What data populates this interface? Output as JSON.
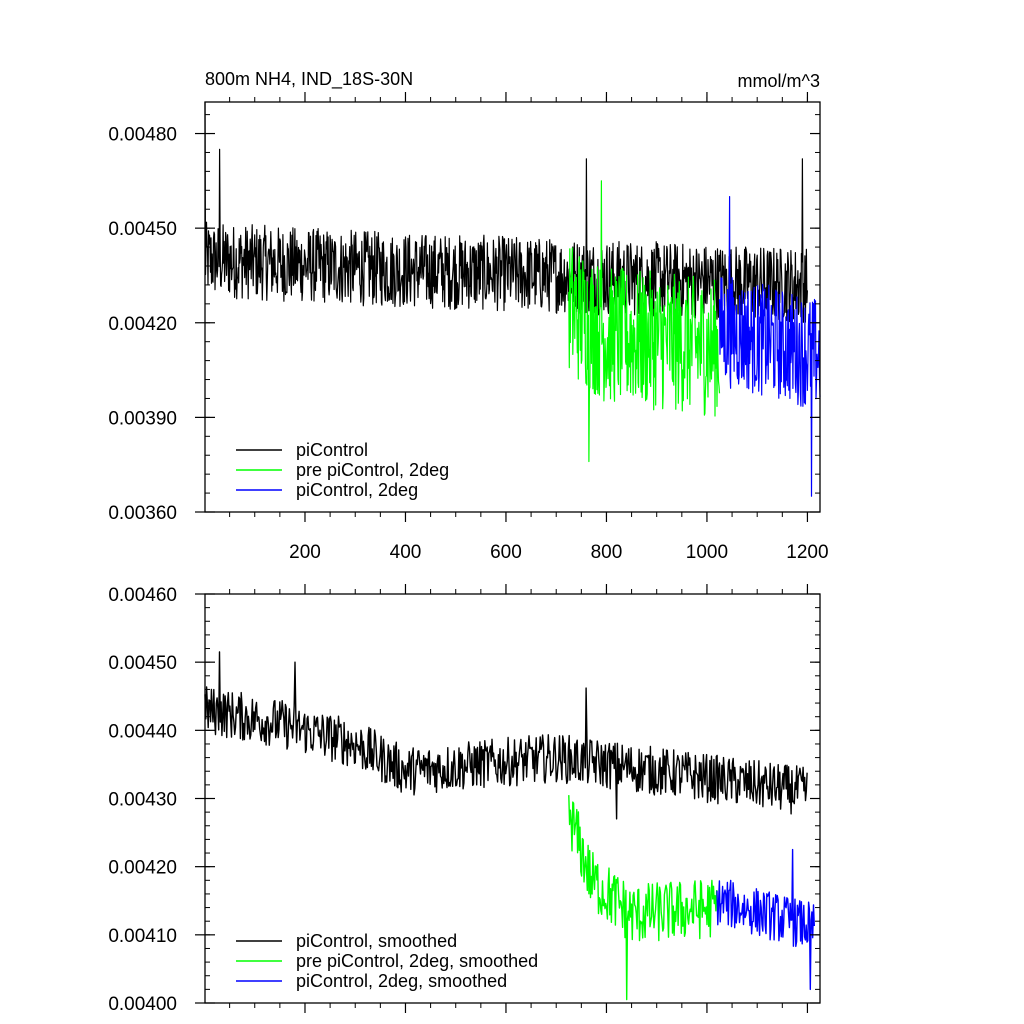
{
  "chart_data": [
    {
      "type": "line",
      "title_left": "800m NH4, IND_18S-30N",
      "title_right": "mmol/m^3",
      "xlim": [
        1,
        1225
      ],
      "ylim": [
        0.0036,
        0.0049
      ],
      "xticks": [
        200,
        400,
        600,
        800,
        1000,
        1200
      ],
      "xtick_labels": [
        "200",
        "400",
        "600",
        "800",
        "1000",
        "1200"
      ],
      "yticks": [
        0.0036,
        0.0039,
        0.0042,
        0.0045,
        0.0048
      ],
      "ytick_labels": [
        "0.00360",
        "0.00390",
        "0.00420",
        "0.00450",
        "0.00480"
      ],
      "grid": false,
      "legend_position": "bottom-left",
      "series": [
        {
          "name": "piControl",
          "color": "#000000",
          "x_range": [
            1,
            1200
          ],
          "baseline": [
            [
              1,
              0.0044
            ],
            [
              350,
              0.00437
            ],
            [
              700,
              0.00435
            ],
            [
              1200,
              0.00432
            ]
          ],
          "noise": 0.00012,
          "peaks": [
            [
              1,
              0.0049
            ],
            [
              30,
              0.00475
            ],
            [
              760,
              0.00472
            ],
            [
              1190,
              0.00472
            ]
          ]
        },
        {
          "name": "pre piControl, 2deg",
          "color": "#00ff00",
          "x_range": [
            725,
            1025
          ],
          "baseline": [
            [
              725,
              0.00425
            ],
            [
              800,
              0.00416
            ],
            [
              1025,
              0.00412
            ]
          ],
          "noise": 0.00022,
          "peaks": [
            [
              790,
              0.00465
            ],
            [
              765,
              0.00376
            ]
          ]
        },
        {
          "name": "piControl, 2deg",
          "color": "#0000ff",
          "x_range": [
            1025,
            1225
          ],
          "baseline": [
            [
              1025,
              0.00418
            ],
            [
              1225,
              0.0041
            ]
          ],
          "noise": 0.00018,
          "peaks": [
            [
              1045,
              0.0046
            ],
            [
              1208,
              0.00365
            ]
          ]
        }
      ]
    },
    {
      "type": "line",
      "xlim": [
        1,
        1225
      ],
      "ylim": [
        0.004,
        0.0046
      ],
      "xticks": [
        200,
        400,
        600,
        800,
        1000,
        1200
      ],
      "yticks": [
        0.004,
        0.0041,
        0.0042,
        0.0043,
        0.0044,
        0.0045,
        0.0046
      ],
      "ytick_labels": [
        "0.00400",
        "0.00410",
        "0.00420",
        "0.00430",
        "0.00440",
        "0.00450",
        "0.00460"
      ],
      "grid": false,
      "legend_position": "bottom-left",
      "series": [
        {
          "name": "piControl, smoothed",
          "color": "#000000",
          "x_range": [
            1,
            1200
          ],
          "baseline": [
            [
              1,
              0.00443
            ],
            [
              150,
              0.00441
            ],
            [
              300,
              0.00438
            ],
            [
              400,
              0.00434
            ],
            [
              700,
              0.00436
            ],
            [
              900,
              0.00434
            ],
            [
              1200,
              0.00431
            ]
          ],
          "noise": 4e-05,
          "peaks": [
            [
              30,
              0.004515
            ],
            [
              180,
              0.0045
            ],
            [
              760,
              0.004462
            ],
            [
              820,
              0.00427
            ]
          ]
        },
        {
          "name": "pre piControl, 2deg, smoothed",
          "color": "#00ff00",
          "x_range": [
            725,
            1020
          ],
          "baseline": [
            [
              725,
              0.00428
            ],
            [
              770,
              0.00418
            ],
            [
              850,
              0.00413
            ],
            [
              1020,
              0.00414
            ]
          ],
          "noise": 5e-05,
          "peaks": [
            [
              725,
              0.004305
            ],
            [
              840,
              0.004005
            ]
          ]
        },
        {
          "name": "piControl, 2deg, smoothed",
          "color": "#0000ff",
          "x_range": [
            1020,
            1215
          ],
          "baseline": [
            [
              1020,
              0.00415
            ],
            [
              1215,
              0.00411
            ]
          ],
          "noise": 4e-05,
          "peaks": [
            [
              1170,
              0.004225
            ],
            [
              1205,
              0.00402
            ]
          ]
        }
      ]
    }
  ]
}
